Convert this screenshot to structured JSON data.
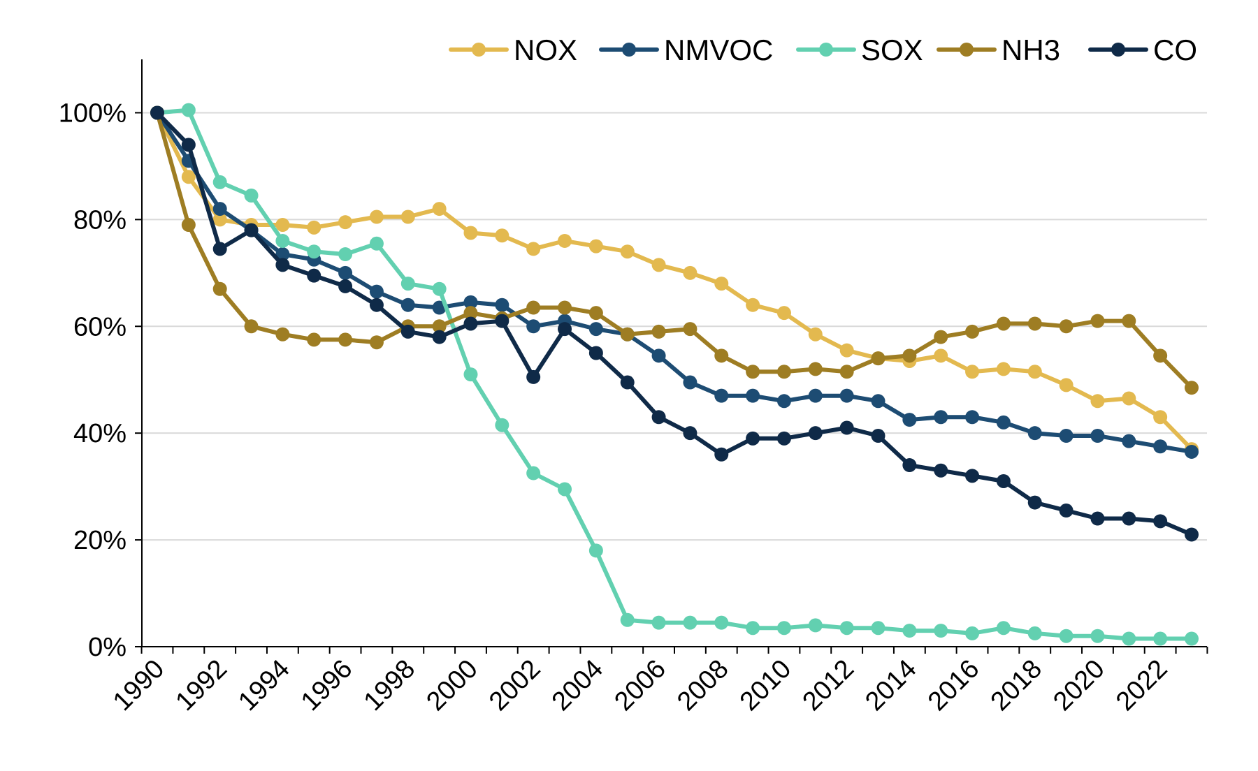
{
  "chart_data": {
    "type": "line",
    "title": "",
    "xlabel": "",
    "ylabel": "",
    "x": [
      1990,
      1991,
      1992,
      1993,
      1994,
      1995,
      1996,
      1997,
      1998,
      1999,
      2000,
      2001,
      2002,
      2003,
      2004,
      2005,
      2006,
      2007,
      2008,
      2009,
      2010,
      2011,
      2012,
      2013,
      2014,
      2015,
      2016,
      2017,
      2018,
      2019,
      2020,
      2021,
      2022,
      2023
    ],
    "x_tick_labels": [
      "1990",
      "1992",
      "1994",
      "1996",
      "1998",
      "2000",
      "2002",
      "2004",
      "2006",
      "2008",
      "2010",
      "2012",
      "2014",
      "2016",
      "2018",
      "2020",
      "2022"
    ],
    "y_tick_labels": [
      "0%",
      "20%",
      "40%",
      "60%",
      "80%",
      "100%"
    ],
    "y_ticks": [
      0,
      20,
      40,
      60,
      80,
      100
    ],
    "ylim": [
      0,
      110
    ],
    "y_unit": "%",
    "grid": "horizontal",
    "legend_position": "top",
    "series": [
      {
        "name": "NOX",
        "color": "#E3B94F",
        "values": [
          100,
          88,
          80,
          79,
          79,
          78.5,
          79.5,
          80.5,
          80.5,
          82,
          77.5,
          77,
          74.5,
          76,
          75,
          74,
          71.5,
          70,
          68,
          64,
          62.5,
          58.5,
          55.5,
          54,
          53.5,
          54.5,
          51.5,
          52,
          51.5,
          49,
          46,
          46.5,
          43,
          37
        ]
      },
      {
        "name": "NMVOC",
        "color": "#1D4C73",
        "values": [
          100,
          91,
          82,
          78,
          73.5,
          72.5,
          70,
          66.5,
          64,
          63.5,
          64.5,
          64,
          60,
          61,
          59.5,
          58.5,
          54.5,
          49.5,
          47,
          47,
          46,
          47,
          47,
          46,
          42.5,
          43,
          43,
          42,
          40,
          39.5,
          39.5,
          38.5,
          37.5,
          36.5
        ]
      },
      {
        "name": "SOX",
        "color": "#62D0B0",
        "values": [
          100,
          100.5,
          87,
          84.5,
          76,
          74,
          73.5,
          75.5,
          68,
          67,
          51,
          41.5,
          32.5,
          29.5,
          18,
          5,
          4.5,
          4.5,
          4.5,
          3.5,
          3.5,
          4,
          3.5,
          3.5,
          3,
          3,
          2.5,
          3.5,
          2.5,
          2,
          2,
          1.5,
          1.5,
          1.5
        ]
      },
      {
        "name": "NH3",
        "color": "#9E7D23",
        "values": [
          100,
          79,
          67,
          60,
          58.5,
          57.5,
          57.5,
          57,
          60,
          60,
          62.5,
          61.5,
          63.5,
          63.5,
          62.5,
          58.5,
          59,
          59.5,
          54.5,
          51.5,
          51.5,
          52,
          51.5,
          54,
          54.5,
          58,
          59,
          60.5,
          60.5,
          60,
          61,
          61,
          54.5,
          48.5
        ]
      },
      {
        "name": "CO",
        "color": "#0F2A48",
        "values": [
          100,
          94,
          74.5,
          78,
          71.5,
          69.5,
          67.5,
          64,
          59,
          58,
          60.5,
          61,
          50.5,
          59.5,
          55,
          49.5,
          43,
          40,
          36,
          39,
          39,
          40,
          41,
          39.5,
          34,
          33,
          32,
          31,
          27,
          25.5,
          24,
          24,
          23.5,
          21
        ]
      }
    ]
  }
}
